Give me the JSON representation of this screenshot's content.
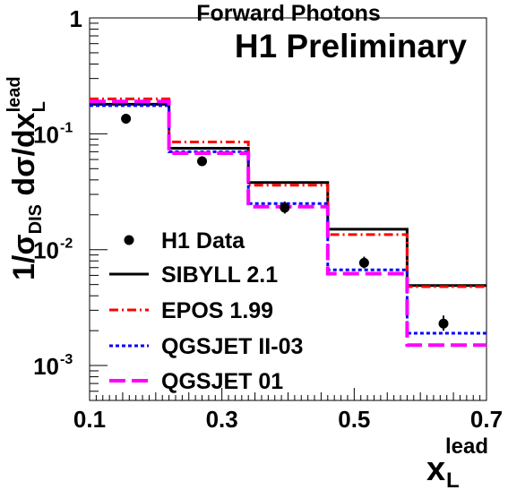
{
  "chart_data": {
    "type": "line",
    "title": "Forward Photons",
    "annotation": "H1 Preliminary",
    "xlabel": {
      "base": "x",
      "sup": "lead",
      "sub": "L"
    },
    "ylabel": {
      "prefix": "1/σ",
      "prefix_sub": "DIS",
      "body": " dσ/dx",
      "sup": "lead",
      "sub": "L"
    },
    "xlim": [
      0.1,
      0.7
    ],
    "ylim": [
      0.0005,
      1
    ],
    "yscale": "log",
    "x_ticks": [
      {
        "value": 0.1,
        "label": "0.1"
      },
      {
        "value": 0.3,
        "label": "0.3"
      },
      {
        "value": 0.5,
        "label": "0.5"
      },
      {
        "value": 0.7,
        "label": "0.7"
      }
    ],
    "y_ticks": [
      {
        "value": 1,
        "label": "1",
        "exp": ""
      },
      {
        "value": 0.1,
        "label": "10",
        "exp": "-1"
      },
      {
        "value": 0.01,
        "label": "10",
        "exp": "-2"
      },
      {
        "value": 0.001,
        "label": "10",
        "exp": "-3"
      }
    ],
    "bin_edges": [
      0.1,
      0.22,
      0.34,
      0.46,
      0.58,
      0.7
    ],
    "legend_position": "lower-left",
    "series": [
      {
        "name": "H1 Data",
        "kind": "points",
        "color": "#000000",
        "x": [
          0.155,
          0.27,
          0.395,
          0.515,
          0.635
        ],
        "y": [
          0.135,
          0.058,
          0.023,
          0.0077,
          0.0023
        ],
        "yerr_low": [
          0.122,
          0.053,
          0.0205,
          0.0069,
          0.002
        ],
        "yerr_high": [
          0.148,
          0.064,
          0.026,
          0.0087,
          0.0027
        ]
      },
      {
        "name": "SIBYLL 2.1",
        "kind": "step",
        "style": "solid",
        "color": "#000000",
        "values": [
          0.18,
          0.075,
          0.038,
          0.015,
          0.0049
        ]
      },
      {
        "name": "EPOS 1.99",
        "kind": "step",
        "style": "dashdot",
        "color": "#ff0000",
        "values": [
          0.2,
          0.085,
          0.036,
          0.0135,
          0.0048
        ]
      },
      {
        "name": "QGSJET II-03",
        "kind": "step",
        "style": "dotted",
        "color": "#0000ff",
        "values": [
          0.175,
          0.07,
          0.025,
          0.0067,
          0.0019
        ]
      },
      {
        "name": "QGSJET 01",
        "kind": "step",
        "style": "longdash",
        "color": "#ff00ff",
        "values": [
          0.19,
          0.068,
          0.0235,
          0.0062,
          0.0015
        ]
      }
    ]
  }
}
